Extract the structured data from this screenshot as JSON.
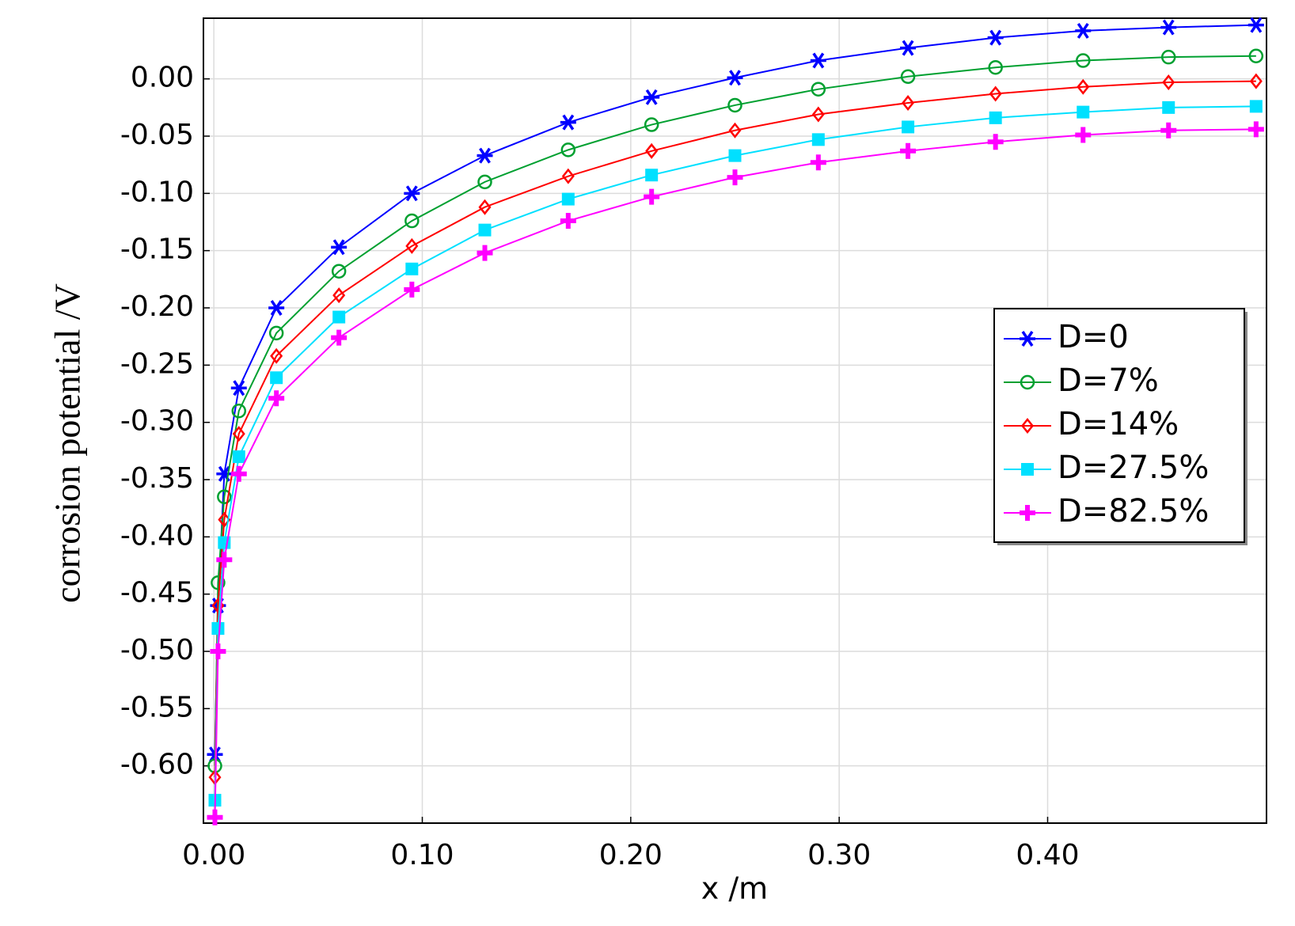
{
  "chart_data": {
    "type": "line",
    "y_label": "corrosion potential /V",
    "x_label": "x /m",
    "x": [
      0.0005,
      0.002,
      0.005,
      0.012,
      0.03,
      0.06,
      0.095,
      0.13,
      0.17,
      0.21,
      0.25,
      0.29,
      0.333,
      0.375,
      0.417,
      0.458,
      0.5
    ],
    "series": [
      {
        "name": "D=0",
        "color": "#0000ff",
        "marker": "asterisk",
        "values": [
          -0.59,
          -0.46,
          -0.345,
          -0.27,
          -0.2,
          -0.147,
          -0.1,
          -0.067,
          -0.038,
          -0.016,
          0.001,
          0.016,
          0.027,
          0.036,
          0.042,
          0.045,
          0.047
        ]
      },
      {
        "name": "D=7%",
        "color": "#00a030",
        "marker": "circle",
        "values": [
          -0.6,
          -0.44,
          -0.365,
          -0.29,
          -0.222,
          -0.168,
          -0.124,
          -0.09,
          -0.062,
          -0.04,
          -0.023,
          -0.009,
          0.002,
          0.01,
          0.016,
          0.019,
          0.02
        ]
      },
      {
        "name": "D=14%",
        "color": "#ff0000",
        "marker": "diamond",
        "values": [
          -0.61,
          -0.46,
          -0.385,
          -0.31,
          -0.242,
          -0.189,
          -0.146,
          -0.112,
          -0.085,
          -0.063,
          -0.045,
          -0.031,
          -0.021,
          -0.013,
          -0.007,
          -0.003,
          -0.002
        ]
      },
      {
        "name": "D=27.5%",
        "color": "#00e0ff",
        "marker": "square",
        "values": [
          -0.63,
          -0.48,
          -0.405,
          -0.33,
          -0.261,
          -0.208,
          -0.166,
          -0.132,
          -0.105,
          -0.084,
          -0.067,
          -0.053,
          -0.042,
          -0.034,
          -0.029,
          -0.025,
          -0.024
        ]
      },
      {
        "name": "D=82.5%",
        "color": "#ff00ff",
        "marker": "plus",
        "values": [
          -0.645,
          -0.5,
          -0.42,
          -0.345,
          -0.279,
          -0.226,
          -0.184,
          -0.152,
          -0.124,
          -0.103,
          -0.086,
          -0.073,
          -0.063,
          -0.055,
          -0.049,
          -0.045,
          -0.044
        ]
      }
    ],
    "xlim": [
      -0.005,
      0.505
    ],
    "ylim": [
      -0.65,
      0.053
    ],
    "xticks": [
      {
        "value": 0,
        "label": "0.00"
      },
      {
        "value": 0.1,
        "label": "0.10"
      },
      {
        "value": 0.2,
        "label": "0.20"
      },
      {
        "value": 0.3,
        "label": "0.30"
      },
      {
        "value": 0.4,
        "label": "0.40"
      }
    ],
    "yticks": [
      {
        "value": 0,
        "label": "0.00"
      },
      {
        "value": -0.05,
        "label": "-0.05"
      },
      {
        "value": -0.1,
        "label": "-0.10"
      },
      {
        "value": -0.15,
        "label": "-0.15"
      },
      {
        "value": -0.2,
        "label": "-0.20"
      },
      {
        "value": -0.25,
        "label": "-0.25"
      },
      {
        "value": -0.3,
        "label": "-0.30"
      },
      {
        "value": -0.35,
        "label": "-0.35"
      },
      {
        "value": -0.4,
        "label": "-0.40"
      },
      {
        "value": -0.45,
        "label": "-0.45"
      },
      {
        "value": -0.5,
        "label": "-0.50"
      },
      {
        "value": -0.55,
        "label": "-0.55"
      },
      {
        "value": -0.6,
        "label": "-0.60"
      }
    ],
    "grid": true,
    "legend": "right"
  }
}
